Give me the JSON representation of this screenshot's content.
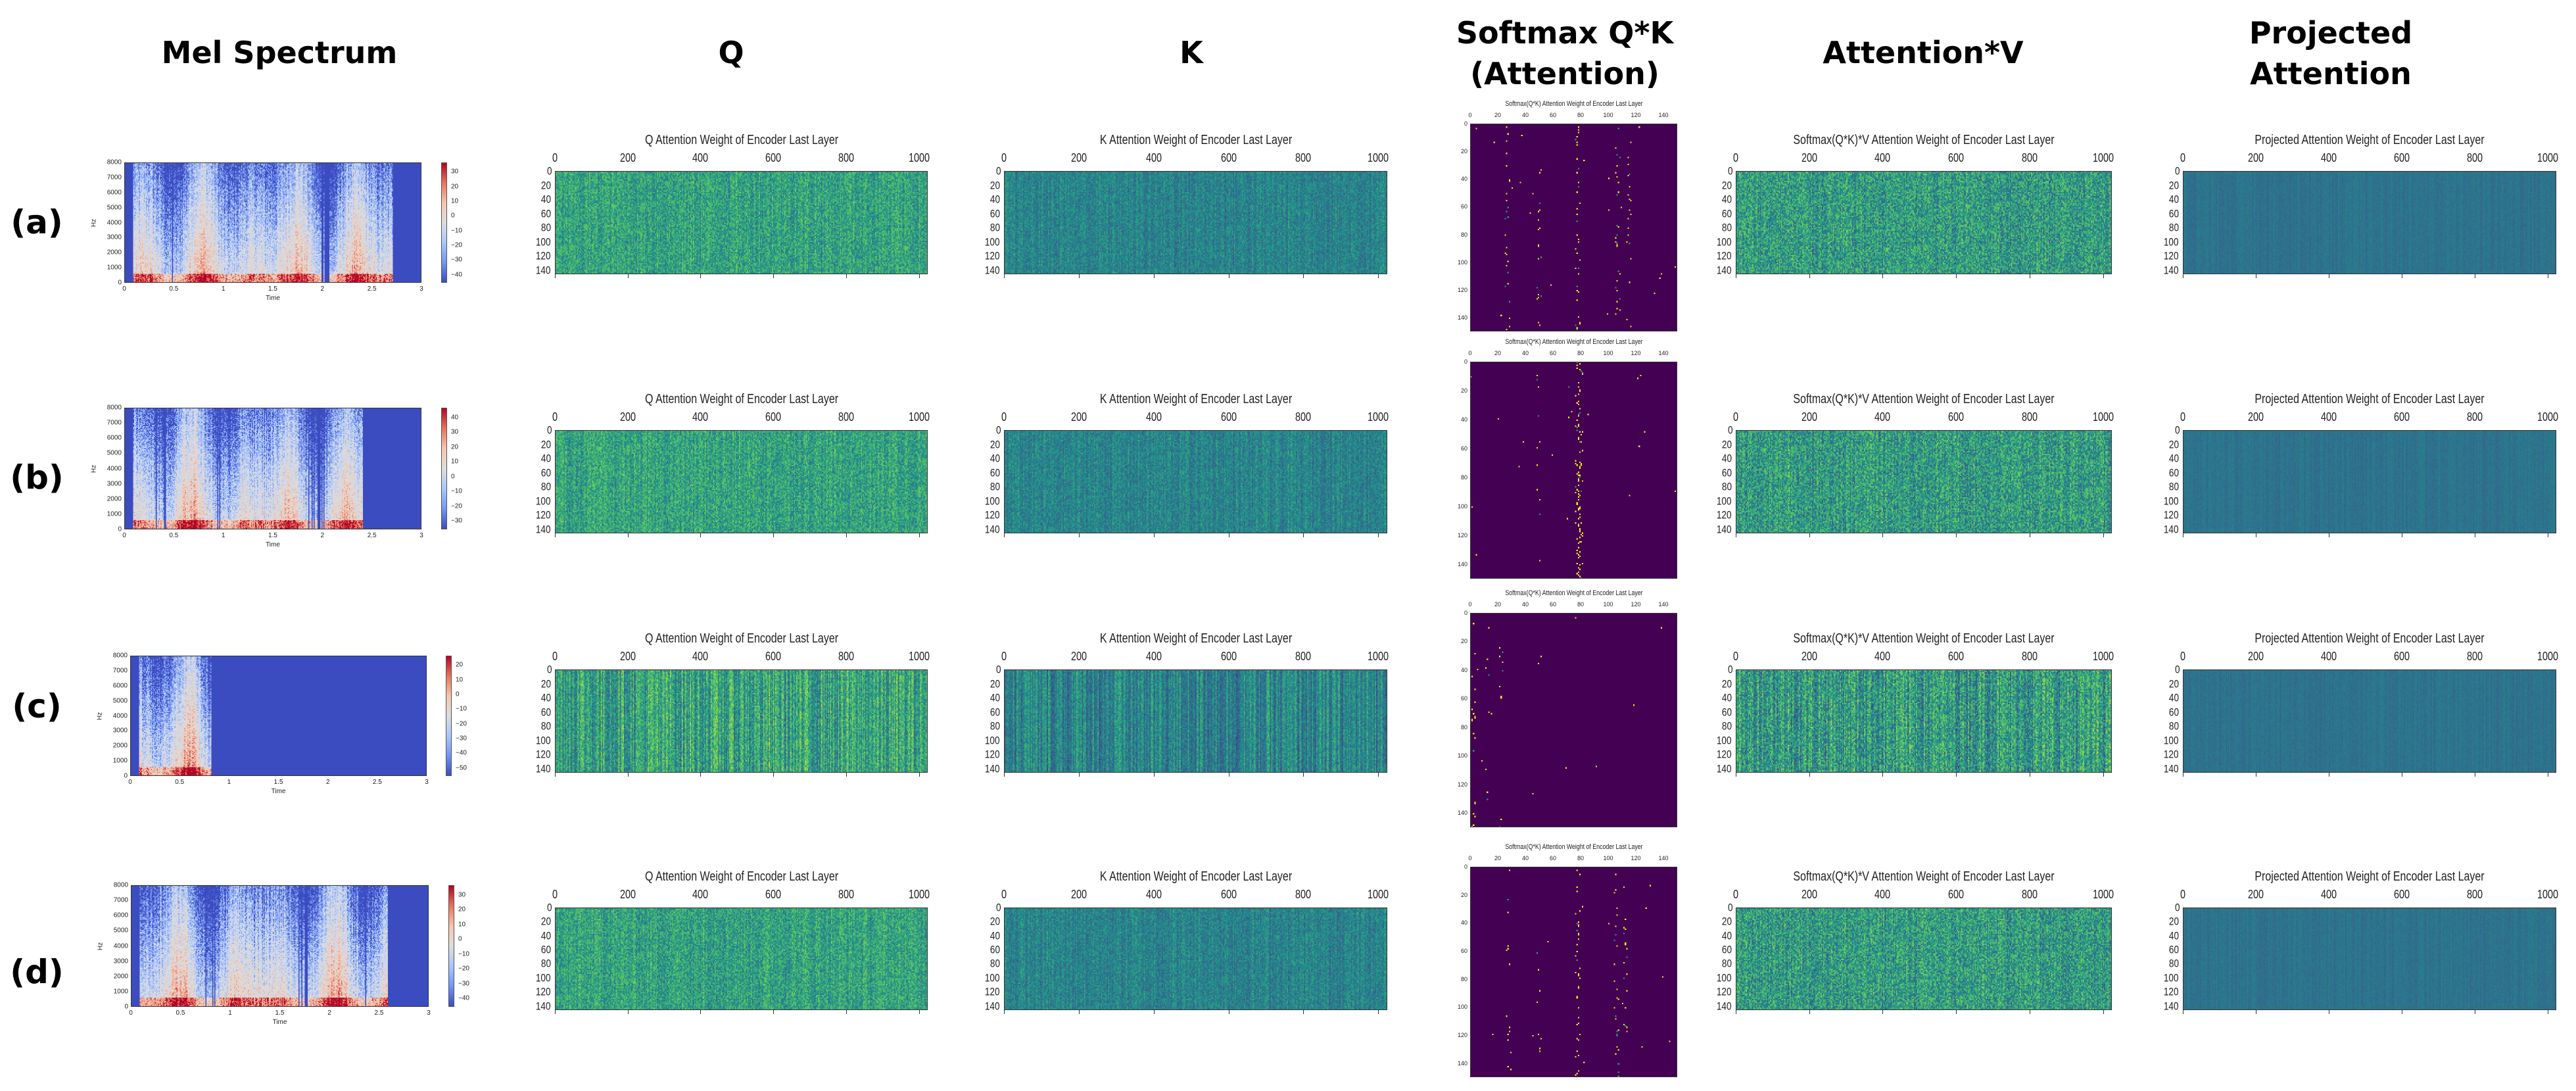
{
  "headers": {
    "mel": "Mel Spectrum",
    "q": "Q",
    "k": "K",
    "softmax_line1": "Softmax Q*K",
    "softmax_line2": "(Attention)",
    "attnv": "Attention*V",
    "proj_line1": "Projected",
    "proj_line2": "Attention"
  },
  "row_labels": [
    "(a)",
    "(b)",
    "(c)",
    "(d)"
  ],
  "titles": {
    "q": "Q Attention Weight of Encoder Last Layer",
    "k": "K Attention Weight of Encoder Last Layer",
    "softmax": "Softmax(Q*K) Attention Weight of Encoder Last Layer",
    "attnv": "Softmax(Q*K)*V Attention Weight of Encoder Last Layer",
    "proj": "Projected Attention Weight of Encoder Last Layer"
  },
  "ticks": {
    "wide_x": [
      "0",
      "200",
      "400",
      "600",
      "800",
      "1000"
    ],
    "wide_y": [
      "0",
      "20",
      "40",
      "60",
      "80",
      "100",
      "120",
      "140"
    ],
    "square": [
      "0",
      "20",
      "40",
      "60",
      "80",
      "100",
      "120",
      "140"
    ],
    "mel_x": [
      "0",
      "0.5",
      "1",
      "1.5",
      "2",
      "2.5",
      "3"
    ],
    "mel_y": [
      "0",
      "1000",
      "2000",
      "3000",
      "4000",
      "5000",
      "6000",
      "7000",
      "8000"
    ],
    "mel_xlabel": "Time",
    "mel_ylabel": "Hz"
  },
  "colorbars": [
    [
      "30",
      "20",
      "10",
      "0",
      "−10",
      "−20",
      "−30",
      "−40"
    ],
    [
      "40",
      "30",
      "20",
      "10",
      "0",
      "−10",
      "−20",
      "−30"
    ],
    [
      "20",
      "10",
      "0",
      "−10",
      "−20",
      "−30",
      "−40",
      "−50"
    ],
    [
      "30",
      "20",
      "10",
      "0",
      "−10",
      "−20",
      "−30",
      "−40"
    ]
  ],
  "colors": {
    "viridis_low": "#440154",
    "viridis_high": "#fde725",
    "coolwarm_low": "#3b4cc0",
    "coolwarm_high": "#b40426"
  }
}
